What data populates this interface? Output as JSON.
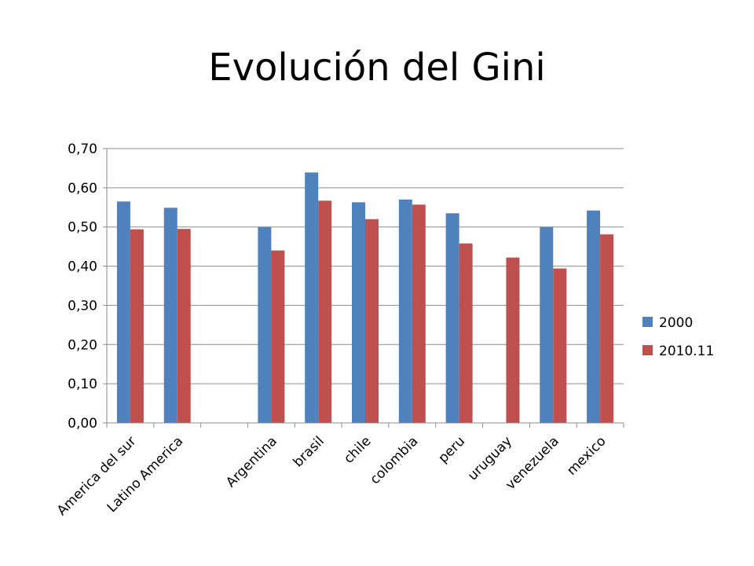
{
  "slide": {
    "title": "Evolución del Gini"
  },
  "chart_data": {
    "type": "bar",
    "title": "",
    "xlabel": "",
    "ylabel": "",
    "ylim": [
      0,
      0.7
    ],
    "ytick_step": 0.1,
    "ytick_labels": [
      "0,00",
      "0,10",
      "0,20",
      "0,30",
      "0,40",
      "0,50",
      "0,60",
      "0,70"
    ],
    "grid": true,
    "legend_position": "right",
    "categories": [
      "America del sur",
      "Latino America",
      "",
      "Argentina",
      "brasil",
      "chile",
      "colombia",
      "peru",
      "uruguay",
      "venezuela",
      "mexico"
    ],
    "series": [
      {
        "name": "2000",
        "color": "#4f81bd",
        "values": [
          0.565,
          0.549,
          null,
          0.5,
          0.639,
          0.563,
          0.57,
          0.535,
          null,
          0.5,
          0.542
        ]
      },
      {
        "name": "2010.11",
        "color": "#c0504d",
        "values": [
          0.494,
          0.495,
          null,
          0.44,
          0.567,
          0.52,
          0.557,
          0.458,
          0.422,
          0.394,
          0.481
        ]
      }
    ]
  }
}
